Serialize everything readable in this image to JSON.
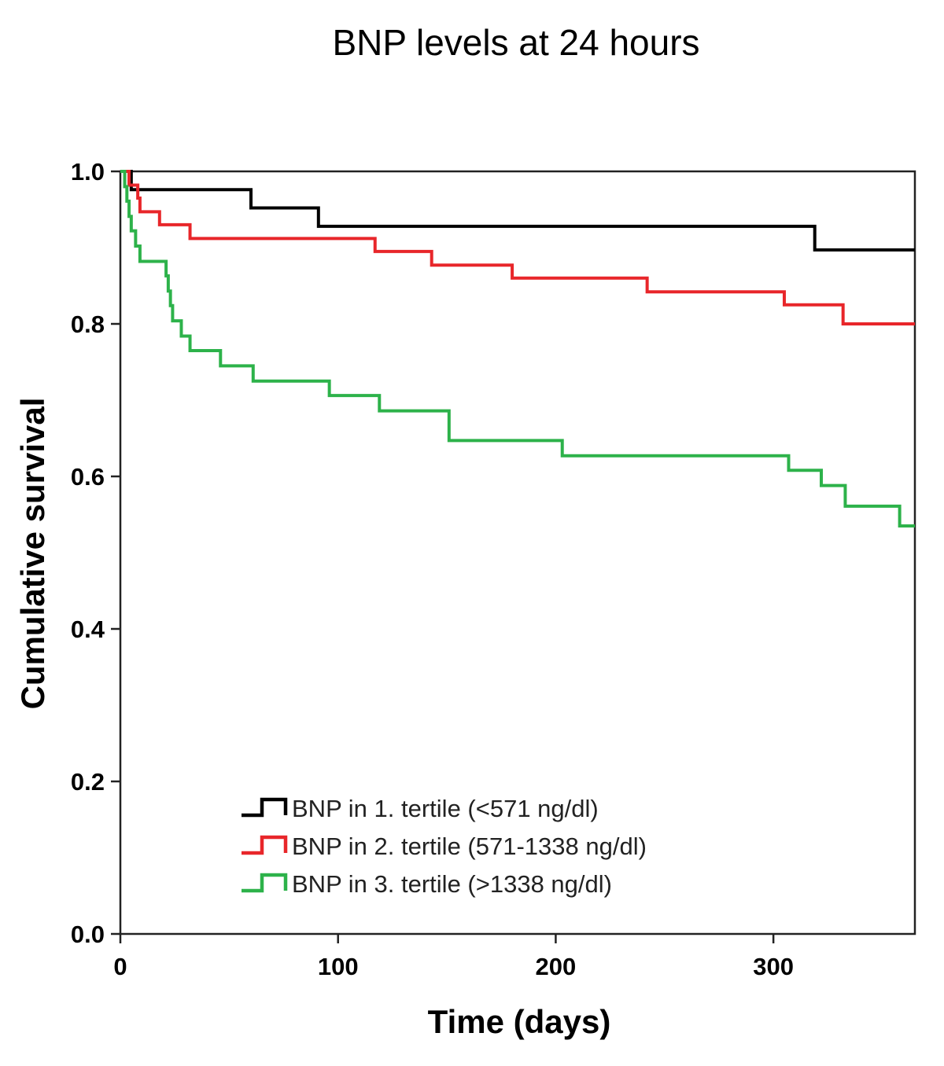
{
  "chart_data": {
    "type": "line",
    "subtype": "kaplan-meier-step",
    "title": "BNP levels at 24 hours",
    "xlabel": "Time (days)",
    "ylabel": "Cumulative survival",
    "xlim": [
      0,
      365
    ],
    "ylim": [
      0.0,
      1.0
    ],
    "x_ticks": [
      0,
      100,
      200,
      300
    ],
    "x_tick_labels": [
      "0",
      "100",
      "200",
      "300"
    ],
    "y_ticks": [
      0.0,
      0.2,
      0.4,
      0.6,
      0.8,
      1.0
    ],
    "y_tick_labels": [
      "0.0",
      "0.2",
      "0.4",
      "0.6",
      "0.8",
      "1.0"
    ],
    "grid": false,
    "legend_position": "bottom-center",
    "series": [
      {
        "name": "BNP in 1. tertile (<571 ng/dl)",
        "color": "#000000",
        "steps": [
          [
            0,
            1.0
          ],
          [
            5,
            0.976
          ],
          [
            60,
            0.952
          ],
          [
            91,
            0.928
          ],
          [
            319,
            0.897
          ],
          [
            365,
            0.897
          ]
        ]
      },
      {
        "name": "BNP in 2. tertile (571-1338 ng/dl)",
        "color": "#e8262a",
        "steps": [
          [
            0,
            1.0
          ],
          [
            4,
            0.982
          ],
          [
            8,
            0.965
          ],
          [
            9,
            0.947
          ],
          [
            18,
            0.93
          ],
          [
            32,
            0.912
          ],
          [
            117,
            0.895
          ],
          [
            143,
            0.877
          ],
          [
            180,
            0.86
          ],
          [
            242,
            0.842
          ],
          [
            305,
            0.825
          ],
          [
            332,
            0.8
          ],
          [
            365,
            0.8
          ]
        ]
      },
      {
        "name": "BNP in 3. tertile (>1338 ng/dl)",
        "color": "#2db24a",
        "steps": [
          [
            0,
            1.0
          ],
          [
            2,
            0.98
          ],
          [
            3,
            0.961
          ],
          [
            4,
            0.941
          ],
          [
            5,
            0.922
          ],
          [
            7,
            0.902
          ],
          [
            9,
            0.882
          ],
          [
            21,
            0.863
          ],
          [
            22,
            0.843
          ],
          [
            23,
            0.824
          ],
          [
            24,
            0.804
          ],
          [
            28,
            0.784
          ],
          [
            32,
            0.765
          ],
          [
            46,
            0.745
          ],
          [
            61,
            0.725
          ],
          [
            96,
            0.706
          ],
          [
            119,
            0.686
          ],
          [
            151,
            0.647
          ],
          [
            203,
            0.627
          ],
          [
            307,
            0.608
          ],
          [
            322,
            0.588
          ],
          [
            333,
            0.561
          ],
          [
            358,
            0.535
          ],
          [
            365,
            0.535
          ]
        ]
      }
    ]
  }
}
